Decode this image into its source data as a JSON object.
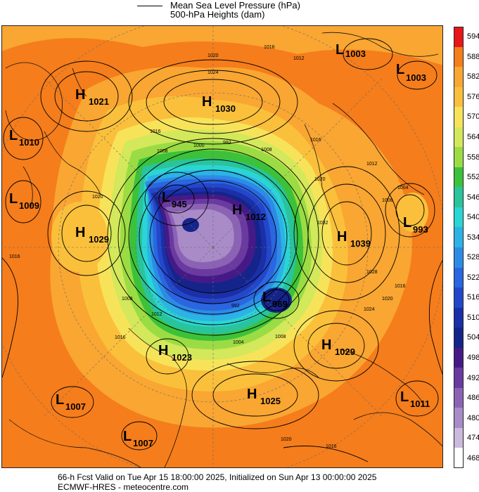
{
  "legend": {
    "line_label": "Mean Sea Level Pressure (hPa)",
    "fill_label": "500-hPa Heights (dam)"
  },
  "colorbar": {
    "levels": [
      "594",
      "588",
      "582",
      "576",
      "570",
      "564",
      "558",
      "552",
      "546",
      "540",
      "534",
      "528",
      "522",
      "516",
      "510",
      "504",
      "498",
      "492",
      "486",
      "480",
      "474",
      "468"
    ],
    "colors": [
      "#e8161a",
      "#f57d1b",
      "#f9a632",
      "#fbc03b",
      "#f7e35a",
      "#d3e85a",
      "#9bdc44",
      "#3cc23a",
      "#29c49b",
      "#2bd5d4",
      "#2bb3e6",
      "#2d8be6",
      "#2a66e0",
      "#2447c9",
      "#1a2fa8",
      "#15248a",
      "#461a86",
      "#6a3aa0",
      "#8c63b4",
      "#a98bc8",
      "#cbbadc",
      "#ffffff"
    ]
  },
  "centres": [
    {
      "type": "H",
      "value": "1030"
    },
    {
      "type": "H",
      "value": "1021"
    },
    {
      "type": "L",
      "value": "1010"
    },
    {
      "type": "L",
      "value": "1009"
    },
    {
      "type": "H",
      "value": "1029"
    },
    {
      "type": "L",
      "value": "1003"
    },
    {
      "type": "L",
      "value": "1003"
    },
    {
      "type": "L",
      "value": "945"
    },
    {
      "type": "H",
      "value": "1012"
    },
    {
      "type": "H",
      "value": "1039"
    },
    {
      "type": "L",
      "value": "993"
    },
    {
      "type": "L",
      "value": "969"
    },
    {
      "type": "H",
      "value": "1029"
    },
    {
      "type": "H",
      "value": "1023"
    },
    {
      "type": "H",
      "value": "1025"
    },
    {
      "type": "L",
      "value": "1007"
    },
    {
      "type": "L",
      "value": "1011"
    },
    {
      "type": "L",
      "value": "1007"
    }
  ],
  "isobar_labels": [
    "1020",
    "1024",
    "1016",
    "1012",
    "1016",
    "1008",
    "1000",
    "992",
    "1008",
    "1016",
    "1020",
    "1032",
    "1004",
    "1008",
    "1012",
    "1016",
    "1020",
    "1024",
    "1028",
    "1016",
    "1008",
    "1020",
    "1012",
    "1016",
    "1004",
    "992",
    "1008",
    "1020",
    "1016"
  ],
  "footer": {
    "line1": "66-h Fcst Valid on Tue Apr 15 18:00:00 2025, Initialized on Sun Apr 13 00:00:00 2025",
    "line2": "ECMWF-HRES  - meteocentre.com"
  }
}
